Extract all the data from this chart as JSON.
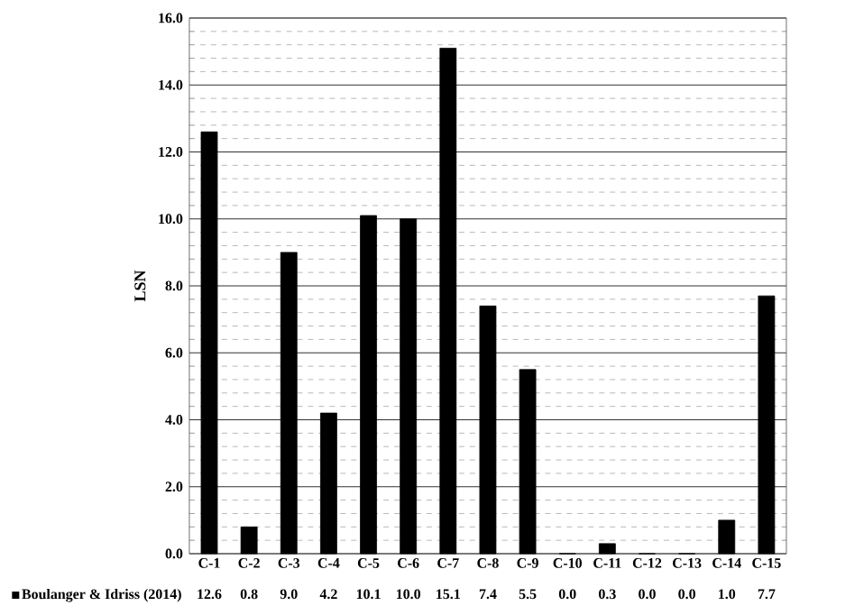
{
  "chart_data": {
    "type": "bar",
    "ylabel": "LSN",
    "categories": [
      "C-1",
      "C-2",
      "C-3",
      "C-4",
      "C-5",
      "C-6",
      "C-7",
      "C-8",
      "C-9",
      "C-10",
      "C-11",
      "C-12",
      "C-13",
      "C-14",
      "C-15"
    ],
    "series": [
      {
        "name": "Boulanger & Idriss (2014)",
        "color": "#000000",
        "values": [
          12.6,
          0.8,
          9.0,
          4.2,
          10.1,
          10.0,
          15.1,
          7.4,
          5.5,
          0.0,
          0.3,
          0.0,
          0.0,
          1.0,
          7.7
        ],
        "value_labels": [
          "12.6",
          "0.8",
          "9.0",
          "4.2",
          "10.1",
          "10.0",
          "15.1",
          "7.4",
          "5.5",
          "0.0",
          "0.3",
          "0.0",
          "0.0",
          "1.0",
          "7.7"
        ]
      }
    ],
    "ylim": [
      0,
      16
    ],
    "yticks": [
      {
        "value": 0,
        "label": "0.0"
      },
      {
        "value": 2,
        "label": "2.0"
      },
      {
        "value": 4,
        "label": "4.0"
      },
      {
        "value": 6,
        "label": "6.0"
      },
      {
        "value": 8,
        "label": "8.0"
      },
      {
        "value": 10,
        "label": "10.0"
      },
      {
        "value": 12,
        "label": "12.0"
      },
      {
        "value": 14,
        "label": "14.0"
      },
      {
        "value": 16,
        "label": "16.0"
      }
    ],
    "grid": true,
    "legend": "bottom left"
  }
}
